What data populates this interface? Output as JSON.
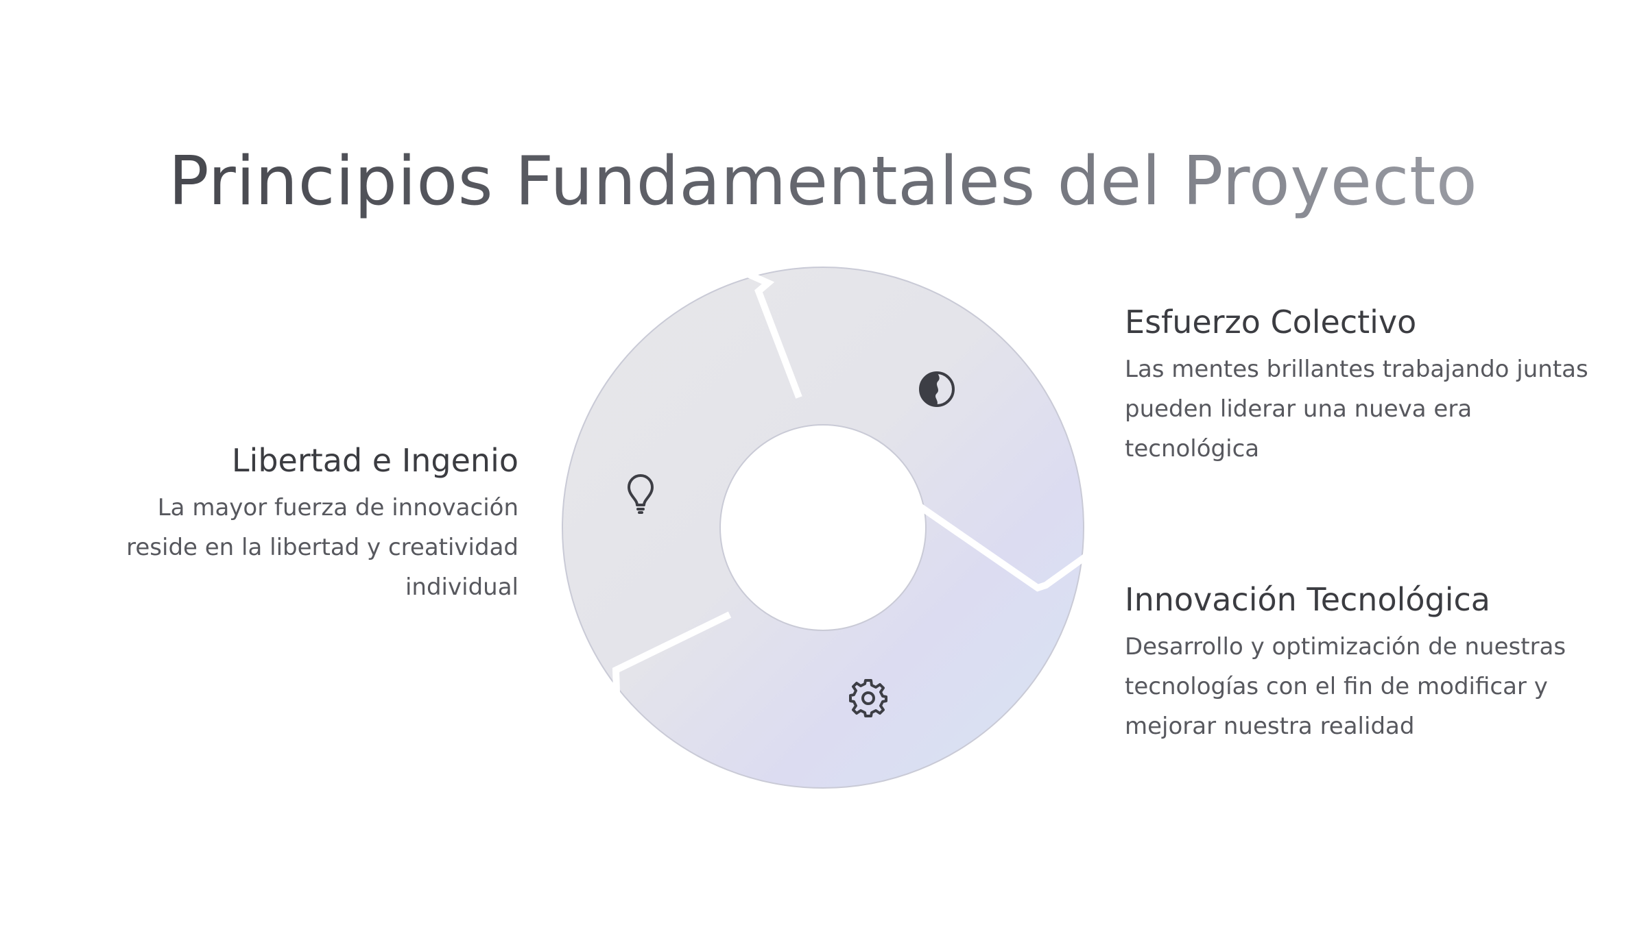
{
  "title": "Principios Fundamentales del Proyecto",
  "segments": [
    {
      "heading": "Libertad e Ingenio",
      "description": "La mayor fuerza de innovación reside en la libertad y creatividad individual",
      "icon": "lightbulb-icon"
    },
    {
      "heading": "Esfuerzo Colectivo",
      "description": "Las mentes brillantes trabajando juntas pueden liderar una nueva era tecnológica",
      "icon": "minds-icon"
    },
    {
      "heading": "Innovación Tecnológica",
      "description": "Desarrollo y optimización de nuestras tecnologías con el fin de modificar y mejorar nuestra realidad",
      "icon": "gear-icon"
    }
  ],
  "colors": {
    "segment_fill_start": "#e6e6e8",
    "segment_fill_mid": "#dcdcf1",
    "segment_fill_end": "#d8e4f4",
    "segment_stroke": "#c9cad6",
    "icon_color": "#3d3e45"
  }
}
